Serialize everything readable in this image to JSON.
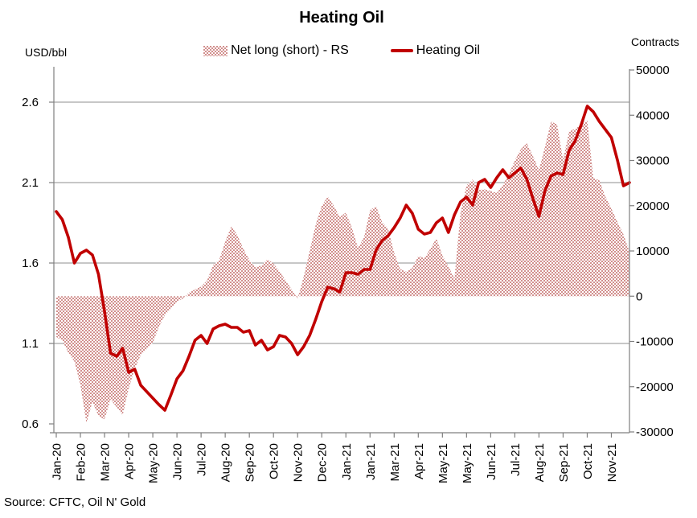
{
  "title": "Heating Oil",
  "source": "Source: CFTC, Oil N' Gold",
  "legend": {
    "area_label": "Net long (short) - RS",
    "line_label": "Heating Oil"
  },
  "axes": {
    "left": {
      "unit": "USD/bbl",
      "ticks": [
        "2.6",
        "2.1",
        "1.6",
        "1.1",
        "0.6"
      ]
    },
    "right": {
      "unit": "Contracts",
      "ticks": [
        "50000",
        "40000",
        "30000",
        "20000",
        "10000",
        "0",
        "-10000",
        "-20000",
        "-30000"
      ]
    }
  },
  "colors": {
    "line": "#c00000",
    "area_dot": "#d2908e",
    "axis": "#7f7f7f",
    "grid": "#8f8f8f",
    "text": "#000000"
  },
  "chart_data": {
    "type": "area+line",
    "title": "Heating Oil",
    "frequency": "weekly",
    "points_per_label": 4,
    "x_labels": [
      "Jan-20",
      "Feb-20",
      "Mar-20",
      "Apr-20",
      "May-20",
      "Jun-20",
      "Jul-20",
      "Aug-20",
      "Sep-20",
      "Oct-20",
      "Nov-20",
      "Dec-20",
      "Jan-21",
      "Jan-21",
      "Mar-21",
      "Apr-21",
      "May-21",
      "May-21",
      "Jun-21",
      "Jul-21",
      "Aug-21",
      "Sep-21",
      "Oct-21",
      "Nov-21"
    ],
    "left_axis": {
      "label": "USD/bbl",
      "min": 0.6,
      "max": 2.6,
      "grid_ticks": [
        2.6,
        2.1,
        1.6,
        1.1
      ]
    },
    "right_axis": {
      "label": "Contracts",
      "min": -30000,
      "max": 50000,
      "tick_step": 10000
    },
    "legend_position": "top",
    "series": [
      {
        "name": "Net long (short) - RS",
        "type": "area",
        "axis": "right",
        "values": [
          -9000,
          -9800,
          -12500,
          -14400,
          -19600,
          -28100,
          -23300,
          -26500,
          -27200,
          -22800,
          -24500,
          -26300,
          -20400,
          -16000,
          -13000,
          -11700,
          -10300,
          -6800,
          -4200,
          -2800,
          -1200,
          -500,
          800,
          1500,
          2100,
          3500,
          6900,
          8000,
          12000,
          15500,
          13500,
          10500,
          8000,
          6400,
          6800,
          8200,
          7200,
          5500,
          3500,
          1500,
          -500,
          4300,
          10000,
          15800,
          20000,
          22000,
          20000,
          17500,
          18500,
          15100,
          10700,
          13000,
          19000,
          19900,
          16400,
          14900,
          9600,
          6000,
          5400,
          6200,
          8900,
          8400,
          10500,
          12800,
          9000,
          6600,
          3900,
          18500,
          24500,
          25800,
          23500,
          23600,
          23300,
          22800,
          24500,
          27000,
          30000,
          32500,
          33800,
          31000,
          27900,
          33000,
          38600,
          38000,
          30200,
          36400,
          37000,
          38000,
          38900,
          26100,
          25600,
          22000,
          19400,
          16400,
          13700,
          9800
        ]
      },
      {
        "name": "Heating Oil",
        "type": "line",
        "axis": "left",
        "values": [
          1.92,
          1.87,
          1.76,
          1.6,
          1.66,
          1.68,
          1.65,
          1.53,
          1.3,
          1.04,
          1.02,
          1.07,
          0.92,
          0.94,
          0.84,
          0.8,
          0.76,
          0.72,
          0.685,
          0.78,
          0.88,
          0.93,
          1.02,
          1.12,
          1.15,
          1.1,
          1.19,
          1.21,
          1.22,
          1.2,
          1.2,
          1.17,
          1.18,
          1.09,
          1.12,
          1.06,
          1.08,
          1.15,
          1.14,
          1.1,
          1.03,
          1.08,
          1.15,
          1.25,
          1.36,
          1.45,
          1.44,
          1.42,
          1.54,
          1.54,
          1.53,
          1.56,
          1.56,
          1.68,
          1.74,
          1.77,
          1.82,
          1.88,
          1.96,
          1.91,
          1.81,
          1.78,
          1.79,
          1.85,
          1.88,
          1.79,
          1.9,
          1.98,
          2.01,
          1.96,
          2.1,
          2.12,
          2.07,
          2.13,
          2.18,
          2.13,
          2.16,
          2.19,
          2.12,
          2.0,
          1.89,
          2.05,
          2.14,
          2.16,
          2.15,
          2.3,
          2.36,
          2.46,
          2.575,
          2.54,
          2.48,
          2.43,
          2.38,
          2.24,
          2.08,
          2.1
        ]
      }
    ]
  }
}
